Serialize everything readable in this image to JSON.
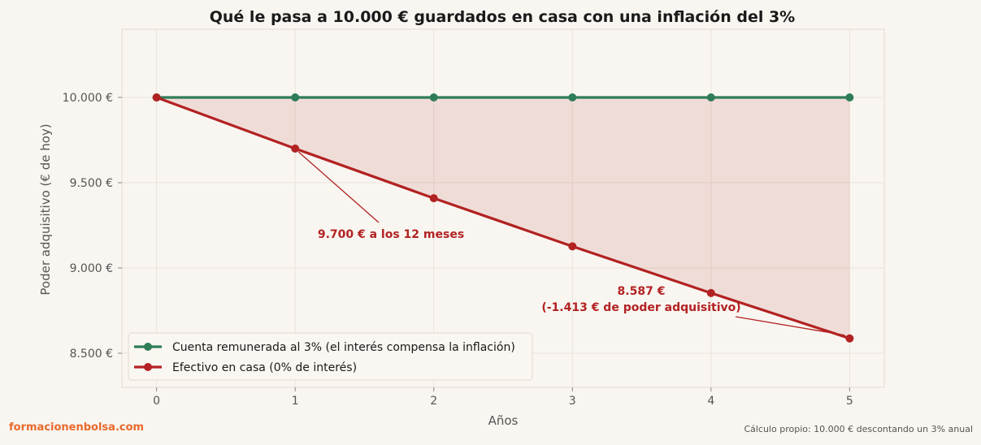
{
  "chart_data": {
    "type": "line",
    "title": "Qué le pasa a 10.000 € guardados en casa con una inflación del 3%",
    "xlabel": "Años",
    "ylabel": "Poder adquisitivo (€ de hoy)",
    "x": [
      0,
      1,
      2,
      3,
      4,
      5
    ],
    "xlim": [
      -0.25,
      5.25
    ],
    "ylim": [
      8300,
      10400
    ],
    "yticks": [
      8500,
      9000,
      9500,
      10000
    ],
    "ytick_labels": [
      "8.500 €",
      "9.000 €",
      "9.500 €",
      "10.000 €"
    ],
    "grid": true,
    "legend_position": "lower-left",
    "series": [
      {
        "name": "Cuenta remunerada al 3% (el interés compensa la inflación)",
        "color": "#2e7d57",
        "values": [
          10000,
          10000,
          10000,
          10000,
          10000,
          10000
        ]
      },
      {
        "name": "Efectivo en casa (0% de interés)",
        "color": "#b22222",
        "values": [
          10000,
          9700,
          9409,
          9127,
          8853,
          8587
        ]
      }
    ],
    "fill_between": {
      "color": "#b22222",
      "opacity": 0.12
    },
    "annotations": [
      {
        "lines": [
          "9.700 € a los 12 meses"
        ],
        "point": [
          1,
          9700
        ]
      },
      {
        "lines": [
          "8.587 €",
          "(-1.413 € de poder adquisitivo)"
        ],
        "point": [
          5,
          8587
        ]
      }
    ]
  },
  "footer": {
    "brand": "formacionenbolsa.com",
    "source": "Cálculo propio: 10.000 € descontando un 3% anual"
  }
}
